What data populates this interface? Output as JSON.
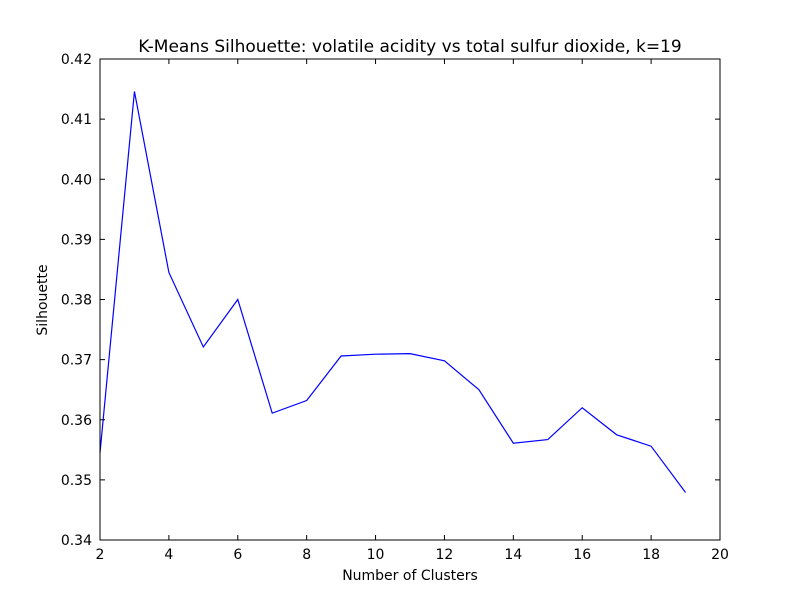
{
  "chart_data": {
    "type": "line",
    "title": "K-Means Silhouette: volatile acidity vs total sulfur dioxide, k=19",
    "xlabel": "Number of Clusters",
    "ylabel": "Silhouette",
    "xlim": [
      2,
      20
    ],
    "ylim": [
      0.34,
      0.42
    ],
    "x_ticks": [
      2,
      4,
      6,
      8,
      10,
      12,
      14,
      16,
      18,
      20
    ],
    "x_tick_labels": [
      "2",
      "4",
      "6",
      "8",
      "10",
      "12",
      "14",
      "16",
      "18",
      "20"
    ],
    "y_ticks": [
      0.34,
      0.35,
      0.36,
      0.37,
      0.38,
      0.39,
      0.4,
      0.41,
      0.42
    ],
    "y_tick_labels": [
      "0.34",
      "0.35",
      "0.36",
      "0.37",
      "0.38",
      "0.39",
      "0.40",
      "0.41",
      "0.42"
    ],
    "grid": false,
    "series": [
      {
        "color": "#0000ff",
        "x": [
          2,
          3,
          4,
          5,
          6,
          7,
          8,
          9,
          10,
          11,
          12,
          13,
          14,
          15,
          16,
          17,
          18,
          19
        ],
        "y": [
          0.3545,
          0.4146,
          0.3845,
          0.3721,
          0.38,
          0.3611,
          0.3632,
          0.3706,
          0.3709,
          0.371,
          0.3698,
          0.365,
          0.3561,
          0.3567,
          0.362,
          0.3575,
          0.3556,
          0.3479
        ]
      }
    ]
  }
}
